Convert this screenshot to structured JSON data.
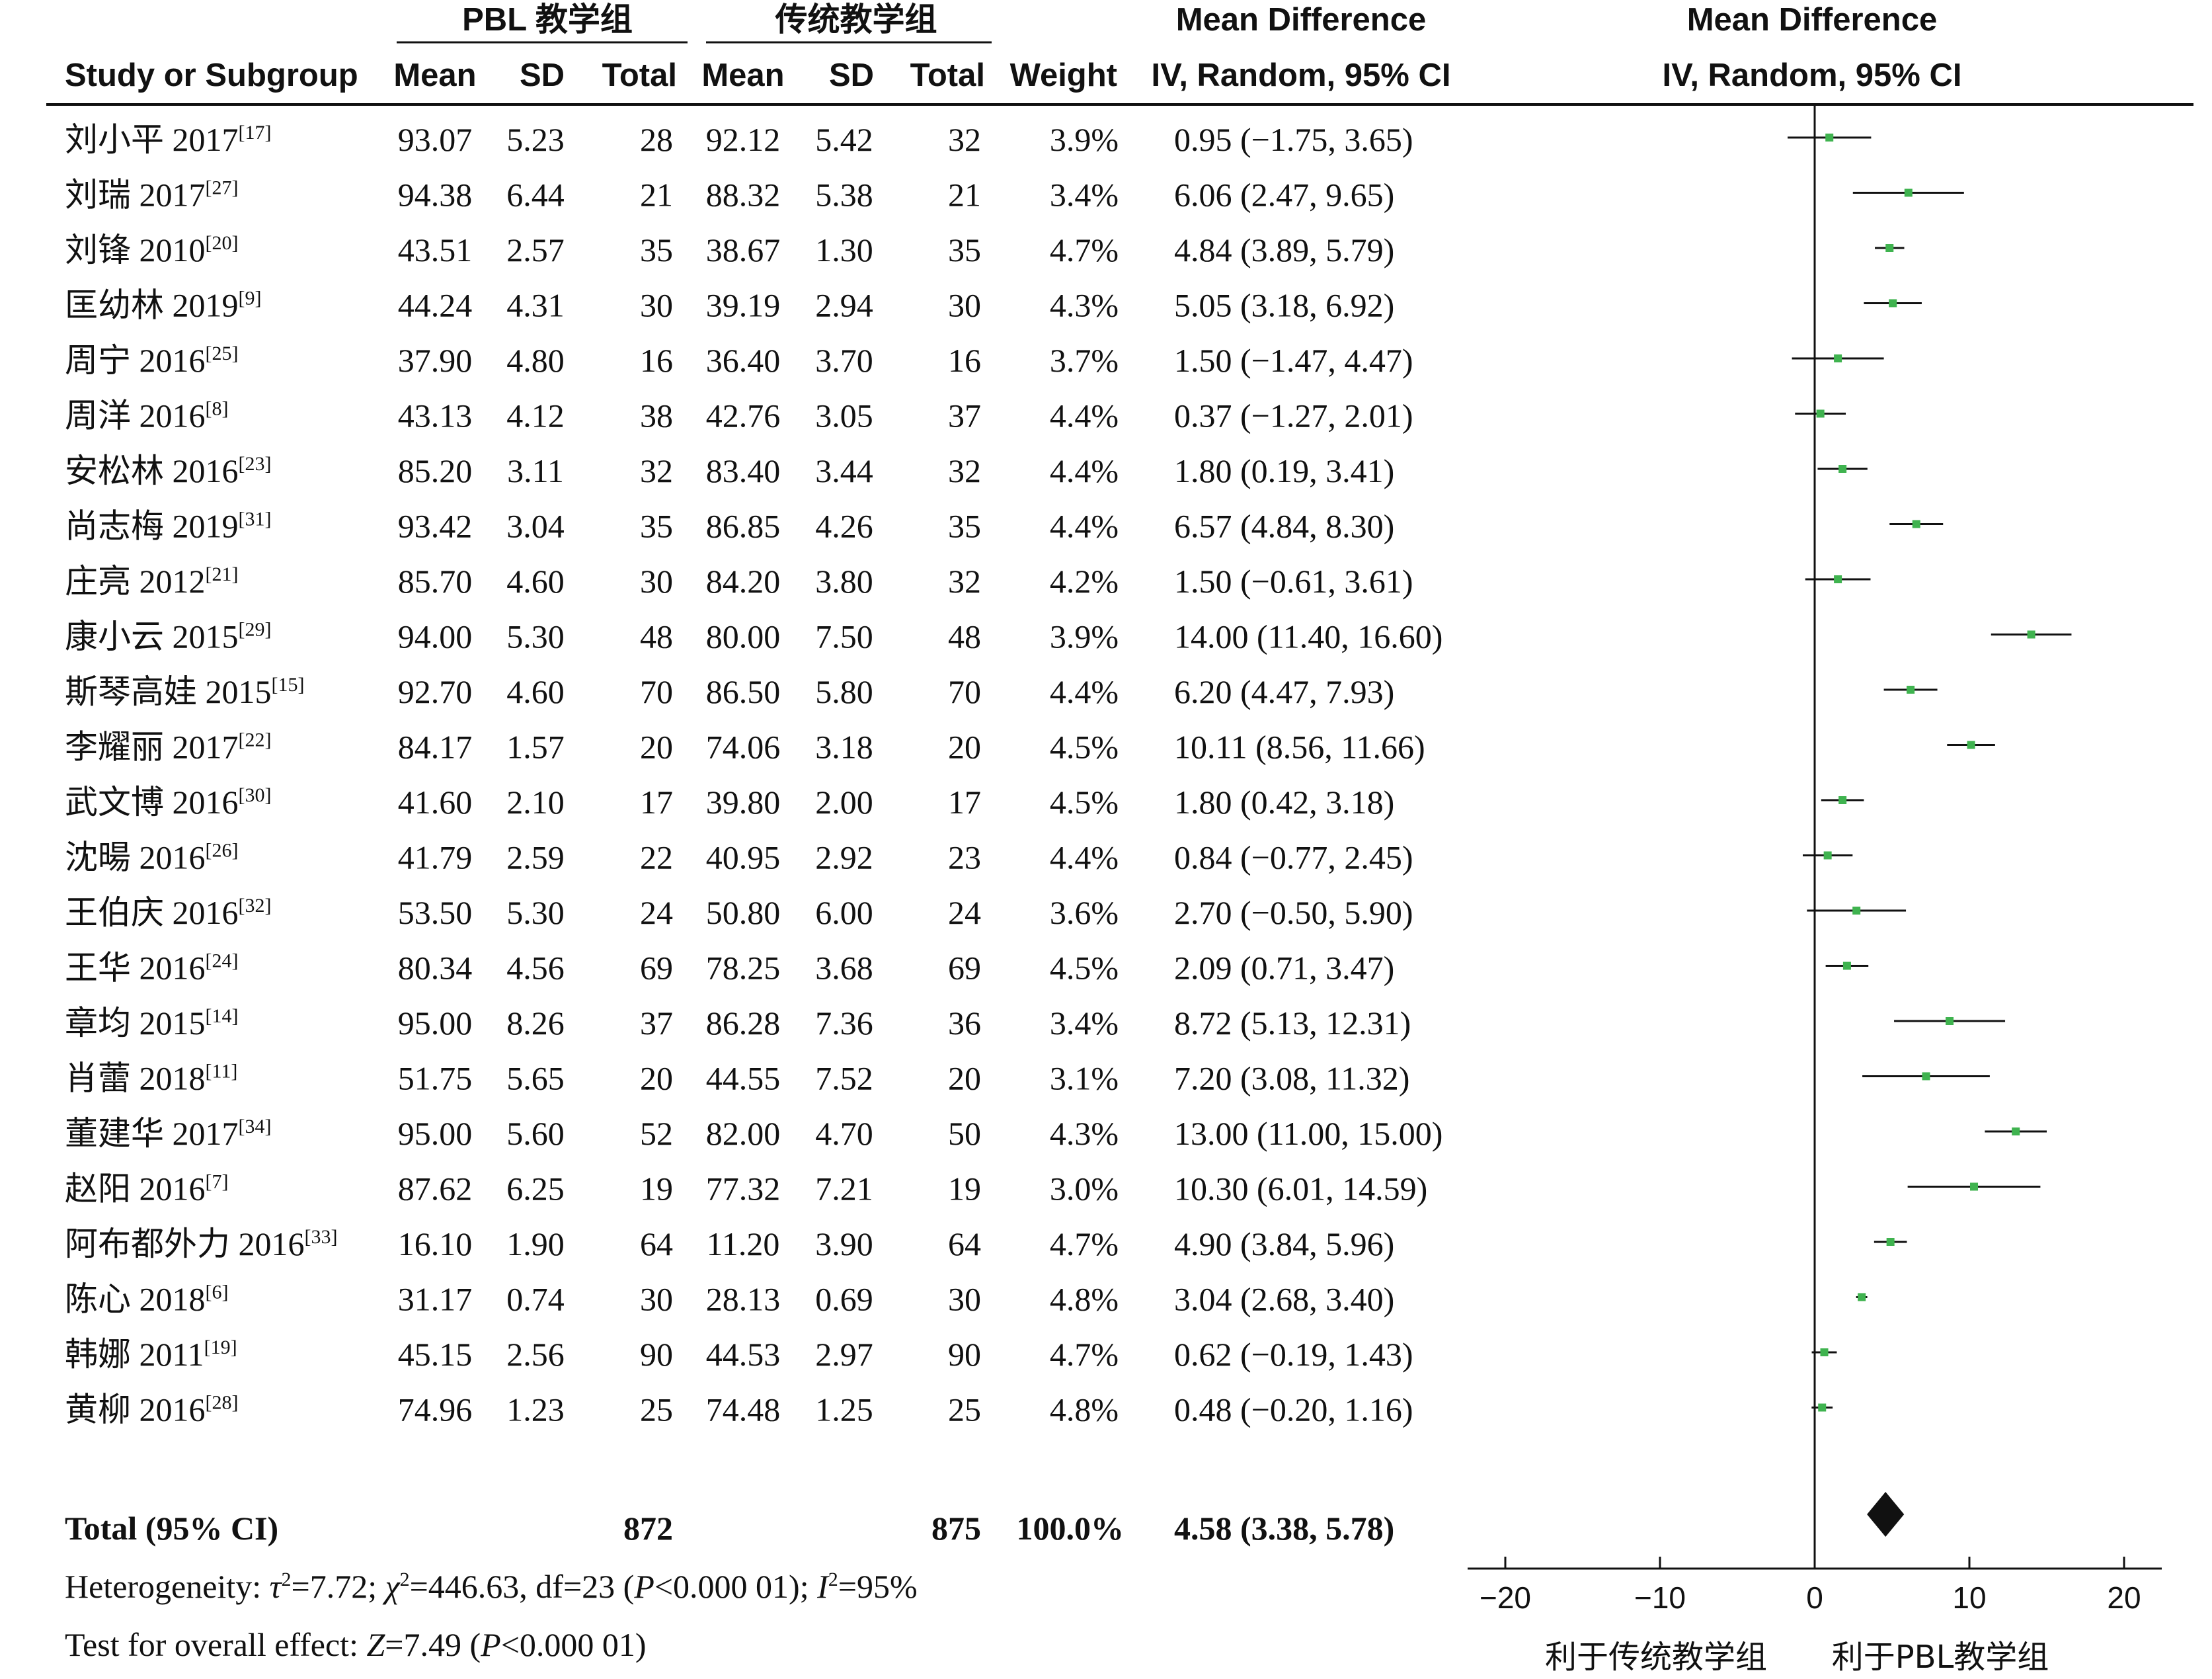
{
  "chart_data": {
    "type": "forest",
    "group_headers": {
      "experimental": "PBL 教学组",
      "control": "传统教学组",
      "md_left": "Mean Difference",
      "md_right": "Mean Difference"
    },
    "column_headers": [
      "Study or Subgroup",
      "Mean",
      "SD",
      "Total",
      "Mean",
      "SD",
      "Total",
      "Weight",
      "IV, Random, 95% CI",
      "IV, Random, 95% CI"
    ],
    "studies": [
      {
        "name": "刘小平 2017",
        "ref": "[17]",
        "e_mean": "93.07",
        "e_sd": "5.23",
        "e_total": "28",
        "c_mean": "92.12",
        "c_sd": "5.42",
        "c_total": "32",
        "weight": "3.9%",
        "ci_text": "0.95 (−1.75, 3.65)",
        "md": 0.95,
        "lo": -1.75,
        "hi": 3.65
      },
      {
        "name": "刘瑞 2017",
        "ref": "[27]",
        "e_mean": "94.38",
        "e_sd": "6.44",
        "e_total": "21",
        "c_mean": "88.32",
        "c_sd": "5.38",
        "c_total": "21",
        "weight": "3.4%",
        "ci_text": "6.06 (2.47, 9.65)",
        "md": 6.06,
        "lo": 2.47,
        "hi": 9.65
      },
      {
        "name": "刘锋 2010",
        "ref": "[20]",
        "e_mean": "43.51",
        "e_sd": "2.57",
        "e_total": "35",
        "c_mean": "38.67",
        "c_sd": "1.30",
        "c_total": "35",
        "weight": "4.7%",
        "ci_text": "4.84 (3.89, 5.79)",
        "md": 4.84,
        "lo": 3.89,
        "hi": 5.79
      },
      {
        "name": "匡幼林 2019",
        "ref": "[9]",
        "e_mean": "44.24",
        "e_sd": "4.31",
        "e_total": "30",
        "c_mean": "39.19",
        "c_sd": "2.94",
        "c_total": "30",
        "weight": "4.3%",
        "ci_text": "5.05 (3.18, 6.92)",
        "md": 5.05,
        "lo": 3.18,
        "hi": 6.92
      },
      {
        "name": "周宁 2016",
        "ref": "[25]",
        "e_mean": "37.90",
        "e_sd": "4.80",
        "e_total": "16",
        "c_mean": "36.40",
        "c_sd": "3.70",
        "c_total": "16",
        "weight": "3.7%",
        "ci_text": "1.50 (−1.47, 4.47)",
        "md": 1.5,
        "lo": -1.47,
        "hi": 4.47
      },
      {
        "name": "周洋 2016",
        "ref": "[8]",
        "e_mean": "43.13",
        "e_sd": "4.12",
        "e_total": "38",
        "c_mean": "42.76",
        "c_sd": "3.05",
        "c_total": "37",
        "weight": "4.4%",
        "ci_text": "0.37 (−1.27, 2.01)",
        "md": 0.37,
        "lo": -1.27,
        "hi": 2.01
      },
      {
        "name": "安松林 2016",
        "ref": "[23]",
        "e_mean": "85.20",
        "e_sd": "3.11",
        "e_total": "32",
        "c_mean": "83.40",
        "c_sd": "3.44",
        "c_total": "32",
        "weight": "4.4%",
        "ci_text": "1.80 (0.19, 3.41)",
        "md": 1.8,
        "lo": 0.19,
        "hi": 3.41
      },
      {
        "name": "尚志梅 2019",
        "ref": "[31]",
        "e_mean": "93.42",
        "e_sd": "3.04",
        "e_total": "35",
        "c_mean": "86.85",
        "c_sd": "4.26",
        "c_total": "35",
        "weight": "4.4%",
        "ci_text": "6.57 (4.84, 8.30)",
        "md": 6.57,
        "lo": 4.84,
        "hi": 8.3
      },
      {
        "name": "庄亮 2012",
        "ref": "[21]",
        "e_mean": "85.70",
        "e_sd": "4.60",
        "e_total": "30",
        "c_mean": "84.20",
        "c_sd": "3.80",
        "c_total": "32",
        "weight": "4.2%",
        "ci_text": "1.50 (−0.61, 3.61)",
        "md": 1.5,
        "lo": -0.61,
        "hi": 3.61
      },
      {
        "name": "康小云 2015",
        "ref": "[29]",
        "e_mean": "94.00",
        "e_sd": "5.30",
        "e_total": "48",
        "c_mean": "80.00",
        "c_sd": "7.50",
        "c_total": "48",
        "weight": "3.9%",
        "ci_text": "14.00 (11.40, 16.60)",
        "md": 14.0,
        "lo": 11.4,
        "hi": 16.6
      },
      {
        "name": "斯琴高娃 2015",
        "ref": "[15]",
        "e_mean": "92.70",
        "e_sd": "4.60",
        "e_total": "70",
        "c_mean": "86.50",
        "c_sd": "5.80",
        "c_total": "70",
        "weight": "4.4%",
        "ci_text": "6.20 (4.47, 7.93)",
        "md": 6.2,
        "lo": 4.47,
        "hi": 7.93
      },
      {
        "name": "李耀丽 2017",
        "ref": "[22]",
        "e_mean": "84.17",
        "e_sd": "1.57",
        "e_total": "20",
        "c_mean": "74.06",
        "c_sd": "3.18",
        "c_total": "20",
        "weight": "4.5%",
        "ci_text": "10.11 (8.56, 11.66)",
        "md": 10.11,
        "lo": 8.56,
        "hi": 11.66
      },
      {
        "name": "武文博 2016",
        "ref": "[30]",
        "e_mean": "41.60",
        "e_sd": "2.10",
        "e_total": "17",
        "c_mean": "39.80",
        "c_sd": "2.00",
        "c_total": "17",
        "weight": "4.5%",
        "ci_text": "1.80 (0.42, 3.18)",
        "md": 1.8,
        "lo": 0.42,
        "hi": 3.18
      },
      {
        "name": "沈暘 2016",
        "ref": "[26]",
        "e_mean": "41.79",
        "e_sd": "2.59",
        "e_total": "22",
        "c_mean": "40.95",
        "c_sd": "2.92",
        "c_total": "23",
        "weight": "4.4%",
        "ci_text": "0.84 (−0.77, 2.45)",
        "md": 0.84,
        "lo": -0.77,
        "hi": 2.45
      },
      {
        "name": "王伯庆 2016",
        "ref": "[32]",
        "e_mean": "53.50",
        "e_sd": "5.30",
        "e_total": "24",
        "c_mean": "50.80",
        "c_sd": "6.00",
        "c_total": "24",
        "weight": "3.6%",
        "ci_text": "2.70 (−0.50, 5.90)",
        "md": 2.7,
        "lo": -0.5,
        "hi": 5.9
      },
      {
        "name": "王华 2016",
        "ref": "[24]",
        "e_mean": "80.34",
        "e_sd": "4.56",
        "e_total": "69",
        "c_mean": "78.25",
        "c_sd": "3.68",
        "c_total": "69",
        "weight": "4.5%",
        "ci_text": "2.09 (0.71, 3.47)",
        "md": 2.09,
        "lo": 0.71,
        "hi": 3.47
      },
      {
        "name": "章均 2015",
        "ref": "[14]",
        "e_mean": "95.00",
        "e_sd": "8.26",
        "e_total": "37",
        "c_mean": "86.28",
        "c_sd": "7.36",
        "c_total": "36",
        "weight": "3.4%",
        "ci_text": "8.72 (5.13, 12.31)",
        "md": 8.72,
        "lo": 5.13,
        "hi": 12.31
      },
      {
        "name": "肖蕾 2018",
        "ref": "[11]",
        "e_mean": "51.75",
        "e_sd": "5.65",
        "e_total": "20",
        "c_mean": "44.55",
        "c_sd": "7.52",
        "c_total": "20",
        "weight": "3.1%",
        "ci_text": "7.20 (3.08, 11.32)",
        "md": 7.2,
        "lo": 3.08,
        "hi": 11.32
      },
      {
        "name": "董建华 2017",
        "ref": "[34]",
        "e_mean": "95.00",
        "e_sd": "5.60",
        "e_total": "52",
        "c_mean": "82.00",
        "c_sd": "4.70",
        "c_total": "50",
        "weight": "4.3%",
        "ci_text": "13.00 (11.00, 15.00)",
        "md": 13.0,
        "lo": 11.0,
        "hi": 15.0
      },
      {
        "name": "赵阳 2016",
        "ref": "[7]",
        "e_mean": "87.62",
        "e_sd": "6.25",
        "e_total": "19",
        "c_mean": "77.32",
        "c_sd": "7.21",
        "c_total": "19",
        "weight": "3.0%",
        "ci_text": "10.30 (6.01, 14.59)",
        "md": 10.3,
        "lo": 6.01,
        "hi": 14.59
      },
      {
        "name": "阿布都外力 2016",
        "ref": "[33]",
        "e_mean": "16.10",
        "e_sd": "1.90",
        "e_total": "64",
        "c_mean": "11.20",
        "c_sd": "3.90",
        "c_total": "64",
        "weight": "4.7%",
        "ci_text": "4.90 (3.84, 5.96)",
        "md": 4.9,
        "lo": 3.84,
        "hi": 5.96
      },
      {
        "name": "陈心 2018",
        "ref": "[6]",
        "e_mean": "31.17",
        "e_sd": "0.74",
        "e_total": "30",
        "c_mean": "28.13",
        "c_sd": "0.69",
        "c_total": "30",
        "weight": "4.8%",
        "ci_text": "3.04 (2.68, 3.40)",
        "md": 3.04,
        "lo": 2.68,
        "hi": 3.4
      },
      {
        "name": "韩娜 2011",
        "ref": "[19]",
        "e_mean": "45.15",
        "e_sd": "2.56",
        "e_total": "90",
        "c_mean": "44.53",
        "c_sd": "2.97",
        "c_total": "90",
        "weight": "4.7%",
        "ci_text": "0.62 (−0.19, 1.43)",
        "md": 0.62,
        "lo": -0.19,
        "hi": 1.43
      },
      {
        "name": "黄柳 2016",
        "ref": "[28]",
        "e_mean": "74.96",
        "e_sd": "1.23",
        "e_total": "25",
        "c_mean": "74.48",
        "c_sd": "1.25",
        "c_total": "25",
        "weight": "4.8%",
        "ci_text": "0.48 (−0.20, 1.16)",
        "md": 0.48,
        "lo": -0.2,
        "hi": 1.16
      }
    ],
    "total": {
      "label": "Total (95% CI)",
      "e_total": "872",
      "c_total": "875",
      "weight": "100.0%",
      "ci_text": "4.58 (3.38, 5.78)",
      "md": 4.58,
      "lo": 3.38,
      "hi": 5.78
    },
    "heterogeneity": {
      "prefix": "Heterogeneity: ",
      "tau": "τ",
      "tau_val": "=7.72; ",
      "chi": "χ",
      "chi_val": "=446.63, df=23 (",
      "p": "P",
      "p_val": "<0.000 01); ",
      "i": "I",
      "i_val": "=95%",
      "sq": "2"
    },
    "overall": {
      "prefix": "Test for overall effect: ",
      "z": "Z",
      "z_val": "=7.49 (",
      "p": "P",
      "p_val": "<0.000 01)"
    },
    "axis": {
      "min": -20,
      "max": 20,
      "ticks": [
        -20,
        -10,
        0,
        10,
        20
      ],
      "tick_labels": [
        "−20",
        "−10",
        "0",
        "10",
        "20"
      ]
    },
    "favours": {
      "left": "利于传统教学组",
      "right": "利于PBL教学组"
    },
    "colors": {
      "point": "#3fb34f",
      "line": "#111111"
    }
  }
}
